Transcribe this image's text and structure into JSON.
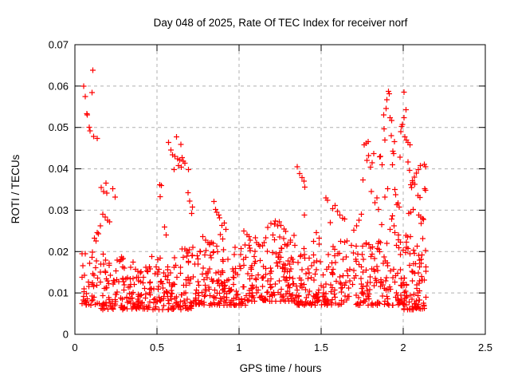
{
  "chart": {
    "title": "Day 048 of 2025, Rate Of TEC Index for receiver norf",
    "xlabel": "GPS time / hours",
    "ylabel": "ROTI / TECUs"
  },
  "chart_data": {
    "type": "scatter",
    "title": "Day 048 of 2025, Rate Of TEC Index for receiver norf",
    "xlabel": "GPS time / hours",
    "ylabel": "ROTI / TECUs",
    "xlim": [
      0,
      2.5
    ],
    "ylim": [
      0,
      0.07
    ],
    "xtick_values": [
      0,
      0.5,
      1,
      1.5,
      2,
      2.5
    ],
    "xtick_labels": [
      "0",
      "0.5",
      "1",
      "1.5",
      "2",
      "2.5"
    ],
    "ytick_values": [
      0,
      0.01,
      0.02,
      0.03,
      0.04,
      0.05,
      0.06,
      0.07
    ],
    "ytick_labels": [
      "0",
      "0.01",
      "0.02",
      "0.03",
      "0.04",
      "0.05",
      "0.06",
      "0.07"
    ],
    "grid": true,
    "legend": false,
    "marker": {
      "shape": "plus",
      "color": "#ff0000",
      "size": 7,
      "stroke_width": 1.2
    },
    "grid_color": "#b0b0b0",
    "border_color": "#000000",
    "data_x_extent": [
      0.04,
      2.14
    ],
    "seed": 48,
    "feature_points": [
      [
        0.11,
        0.0638
      ],
      [
        0.053,
        0.06
      ],
      [
        0.105,
        0.0584
      ],
      [
        0.062,
        0.0575
      ],
      [
        0.073,
        0.0533
      ],
      [
        0.076,
        0.053
      ],
      [
        0.088,
        0.05
      ],
      [
        0.093,
        0.0492
      ],
      [
        0.115,
        0.0478
      ],
      [
        0.135,
        0.0473
      ],
      [
        0.16,
        0.0355
      ],
      [
        0.19,
        0.0365
      ],
      [
        0.175,
        0.0345
      ],
      [
        0.195,
        0.0341
      ],
      [
        0.23,
        0.0352
      ],
      [
        0.245,
        0.0332
      ],
      [
        0.17,
        0.029
      ],
      [
        0.185,
        0.0283
      ],
      [
        0.2,
        0.0276
      ],
      [
        0.21,
        0.0272
      ],
      [
        0.155,
        0.0262
      ],
      [
        0.137,
        0.0246
      ],
      [
        0.142,
        0.0243
      ],
      [
        0.118,
        0.0232
      ],
      [
        0.128,
        0.0226
      ],
      [
        0.517,
        0.0362
      ],
      [
        0.52,
        0.0333
      ],
      [
        0.527,
        0.036
      ],
      [
        0.546,
        0.0259
      ],
      [
        0.556,
        0.024
      ],
      [
        0.571,
        0.0464
      ],
      [
        0.585,
        0.0445
      ],
      [
        0.618,
        0.0477
      ],
      [
        0.645,
        0.0459
      ],
      [
        0.595,
        0.0434
      ],
      [
        0.61,
        0.043
      ],
      [
        0.625,
        0.0424
      ],
      [
        0.638,
        0.0421
      ],
      [
        0.652,
        0.0427
      ],
      [
        0.66,
        0.0418
      ],
      [
        0.67,
        0.0414
      ],
      [
        0.604,
        0.0398
      ],
      [
        0.691,
        0.0398
      ],
      [
        0.63,
        0.0408
      ],
      [
        0.648,
        0.0404
      ],
      [
        0.69,
        0.0342
      ],
      [
        0.7,
        0.0322
      ],
      [
        0.715,
        0.0308
      ],
      [
        0.71,
        0.0292
      ],
      [
        0.78,
        0.0236
      ],
      [
        0.795,
        0.0228
      ],
      [
        0.81,
        0.0222
      ],
      [
        0.822,
        0.0221
      ],
      [
        0.833,
        0.0222
      ],
      [
        0.843,
        0.022
      ],
      [
        0.846,
        0.0321
      ],
      [
        0.858,
        0.0302
      ],
      [
        0.865,
        0.0295
      ],
      [
        0.875,
        0.0288
      ],
      [
        0.882,
        0.0282
      ],
      [
        0.895,
        0.0263
      ],
      [
        0.909,
        0.0269
      ],
      [
        0.886,
        0.0241
      ],
      [
        0.9,
        0.023
      ],
      [
        0.92,
        0.0254
      ],
      [
        1.03,
        0.025
      ],
      [
        1.048,
        0.0241
      ],
      [
        1.06,
        0.0236
      ],
      [
        1.175,
        0.0258
      ],
      [
        1.195,
        0.0268
      ],
      [
        1.215,
        0.0266
      ],
      [
        1.235,
        0.0262
      ],
      [
        1.255,
        0.0263
      ],
      [
        1.275,
        0.0255
      ],
      [
        1.245,
        0.0272
      ],
      [
        1.222,
        0.0274
      ],
      [
        1.355,
        0.0405
      ],
      [
        1.37,
        0.0389
      ],
      [
        1.383,
        0.0379
      ],
      [
        1.395,
        0.037
      ],
      [
        1.4,
        0.0356
      ],
      [
        1.397,
        0.0288
      ],
      [
        1.47,
        0.0246
      ],
      [
        1.487,
        0.0232
      ],
      [
        1.528,
        0.033
      ],
      [
        1.54,
        0.0324
      ],
      [
        1.57,
        0.0304
      ],
      [
        1.585,
        0.0311
      ],
      [
        1.6,
        0.0297
      ],
      [
        1.615,
        0.0288
      ],
      [
        1.63,
        0.0281
      ],
      [
        1.642,
        0.0279
      ],
      [
        1.556,
        0.027
      ],
      [
        1.7,
        0.0252
      ],
      [
        1.715,
        0.0262
      ],
      [
        1.73,
        0.0276
      ],
      [
        1.745,
        0.029
      ],
      [
        1.755,
        0.0373
      ],
      [
        1.762,
        0.0458
      ],
      [
        1.775,
        0.0462
      ],
      [
        1.787,
        0.0466
      ],
      [
        1.778,
        0.042
      ],
      [
        1.79,
        0.0432
      ],
      [
        1.8,
        0.0404
      ],
      [
        1.81,
        0.0415
      ],
      [
        1.82,
        0.0437
      ],
      [
        1.805,
        0.0345
      ],
      [
        1.828,
        0.0318
      ],
      [
        1.84,
        0.033
      ],
      [
        1.85,
        0.0302
      ],
      [
        1.857,
        0.0429
      ],
      [
        1.862,
        0.043
      ],
      [
        1.868,
        0.0265
      ],
      [
        1.871,
        0.041
      ],
      [
        1.88,
        0.053
      ],
      [
        1.884,
        0.0497
      ],
      [
        1.888,
        0.0332
      ],
      [
        1.889,
        0.047
      ],
      [
        1.895,
        0.0546
      ],
      [
        1.9,
        0.0567
      ],
      [
        1.905,
        0.0352
      ],
      [
        1.91,
        0.0587
      ],
      [
        1.916,
        0.0581
      ],
      [
        1.92,
        0.0524
      ],
      [
        1.92,
        0.0254
      ],
      [
        1.926,
        0.048
      ],
      [
        1.93,
        0.0517
      ],
      [
        1.93,
        0.0279
      ],
      [
        1.934,
        0.041
      ],
      [
        1.935,
        0.0286
      ],
      [
        1.938,
        0.0443
      ],
      [
        1.942,
        0.0437
      ],
      [
        1.945,
        0.0262
      ],
      [
        1.947,
        0.0466
      ],
      [
        1.95,
        0.035
      ],
      [
        1.955,
        0.0337
      ],
      [
        1.96,
        0.0313
      ],
      [
        1.968,
        0.0317
      ],
      [
        1.975,
        0.0308
      ],
      [
        1.98,
        0.0428
      ],
      [
        1.985,
        0.049
      ],
      [
        1.99,
        0.0502
      ],
      [
        1.996,
        0.0507
      ],
      [
        2.004,
        0.0585
      ],
      [
        2.005,
        0.0524
      ],
      [
        2.016,
        0.0543
      ],
      [
        2.01,
        0.0477
      ],
      [
        2.02,
        0.047
      ],
      [
        2.03,
        0.0464
      ],
      [
        2.042,
        0.0458
      ],
      [
        2.028,
        0.0417
      ],
      [
        2.04,
        0.0396
      ],
      [
        2.055,
        0.0371
      ],
      [
        2.068,
        0.038
      ],
      [
        2.08,
        0.039
      ],
      [
        2.092,
        0.0398
      ],
      [
        2.105,
        0.0408
      ],
      [
        2.045,
        0.0362
      ],
      [
        2.058,
        0.0366
      ],
      [
        2.07,
        0.0363
      ],
      [
        2.052,
        0.0355
      ],
      [
        2.089,
        0.0336
      ],
      [
        2.103,
        0.0331
      ],
      [
        2.06,
        0.0302
      ],
      [
        2.045,
        0.0295
      ],
      [
        2.035,
        0.0292
      ],
      [
        2.094,
        0.0288
      ],
      [
        2.108,
        0.0283
      ],
      [
        2.118,
        0.028
      ],
      [
        2.123,
        0.0278
      ],
      [
        2.11,
        0.0268
      ],
      [
        2.12,
        0.0231
      ],
      [
        2.128,
        0.0411
      ],
      [
        2.135,
        0.0405
      ],
      [
        2.13,
        0.0352
      ],
      [
        2.137,
        0.0348
      ]
    ],
    "noise_bands": [
      {
        "x0": 0.04,
        "x1": 0.15,
        "n": 40,
        "yMin": 0.007,
        "yMax": 0.022
      },
      {
        "x0": 0.15,
        "x1": 0.3,
        "n": 72,
        "yMin": 0.006,
        "yMax": 0.02
      },
      {
        "x0": 0.3,
        "x1": 0.45,
        "n": 72,
        "yMin": 0.006,
        "yMax": 0.018
      },
      {
        "x0": 0.45,
        "x1": 0.6,
        "n": 72,
        "yMin": 0.006,
        "yMax": 0.019
      },
      {
        "x0": 0.6,
        "x1": 0.75,
        "n": 72,
        "yMin": 0.006,
        "yMax": 0.021
      },
      {
        "x0": 0.75,
        "x1": 0.9,
        "n": 75,
        "yMin": 0.007,
        "yMax": 0.022
      },
      {
        "x0": 0.9,
        "x1": 1.05,
        "n": 75,
        "yMin": 0.007,
        "yMax": 0.022
      },
      {
        "x0": 1.05,
        "x1": 1.2,
        "n": 78,
        "yMin": 0.008,
        "yMax": 0.024
      },
      {
        "x0": 1.2,
        "x1": 1.35,
        "n": 80,
        "yMin": 0.008,
        "yMax": 0.026
      },
      {
        "x0": 1.35,
        "x1": 1.5,
        "n": 75,
        "yMin": 0.007,
        "yMax": 0.023
      },
      {
        "x0": 1.5,
        "x1": 1.65,
        "n": 62,
        "yMin": 0.007,
        "yMax": 0.023
      },
      {
        "x0": 1.65,
        "x1": 1.8,
        "n": 62,
        "yMin": 0.007,
        "yMax": 0.024
      },
      {
        "x0": 1.8,
        "x1": 1.95,
        "n": 62,
        "yMin": 0.007,
        "yMax": 0.026
      },
      {
        "x0": 1.95,
        "x1": 2.05,
        "n": 58,
        "yMin": 0.006,
        "yMax": 0.024
      },
      {
        "x0": 2.05,
        "x1": 2.14,
        "n": 55,
        "yMin": 0.006,
        "yMax": 0.022
      }
    ]
  }
}
